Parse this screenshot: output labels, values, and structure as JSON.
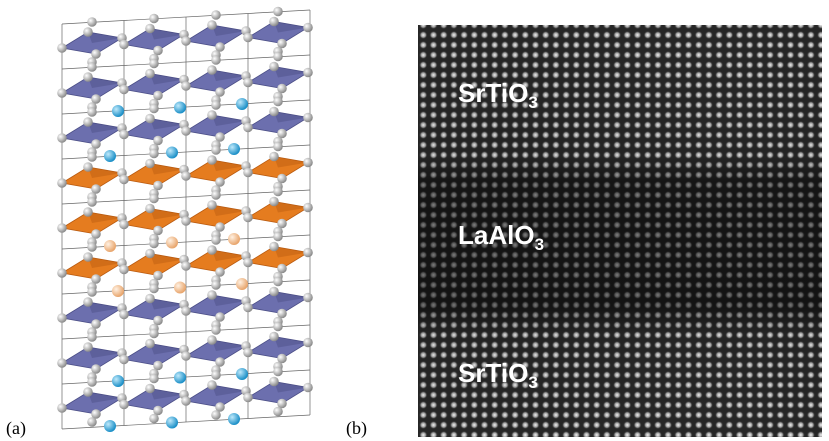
{
  "panels": [
    {
      "label": "(a)"
    },
    {
      "label": "(b)",
      "layers": [
        {
          "formula": "SrTiO",
          "subscript": "3"
        },
        {
          "formula": "LaAlO",
          "subscript": "3"
        },
        {
          "formula": "SrTiO",
          "subscript": "3"
        }
      ]
    }
  ]
}
